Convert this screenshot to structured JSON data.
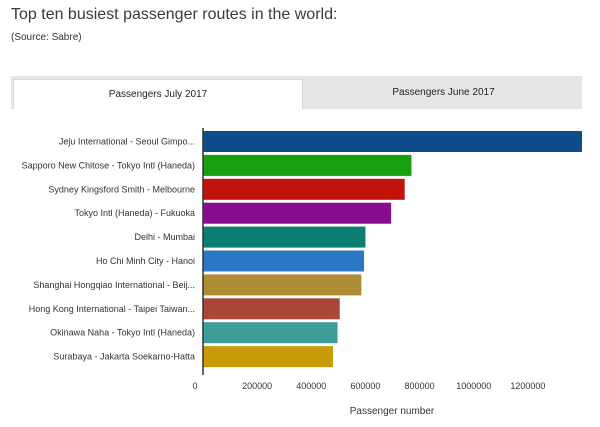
{
  "header": {
    "title": "Top ten busiest passenger routes in the world:",
    "source": "(Source: Sabre)"
  },
  "tabs": [
    {
      "label": "Passengers July 2017",
      "active": true
    },
    {
      "label": "Passengers June 2017",
      "active": false
    }
  ],
  "chart_data": {
    "type": "bar",
    "orientation": "horizontal",
    "categories": [
      "Jeju International - Seoul Gimpo...",
      "Sapporo New Chitose - Tokyo Intl (Haneda)",
      "Sydney Kingsford Smith - Melbourne",
      "Tokyo Intl (Haneda) - Fukuoka",
      "Delhi - Mumbai",
      "Ho Chi Minh City - Hanoi",
      "Shanghai Hongqiao International - Beij...",
      "Hong Kong International - Taipei Taiwan...",
      "Okinawa Naha - Tokyo Intl (Haneda)",
      "Surabaya - Jakarta Soekarno-Hatta"
    ],
    "values": [
      1400000,
      770000,
      745000,
      695000,
      600000,
      595000,
      585000,
      505000,
      497000,
      480000
    ],
    "colors": [
      "#0e4d8a",
      "#16a00f",
      "#c0140c",
      "#860d8d",
      "#0c7d73",
      "#2b77c4",
      "#ad8c34",
      "#a94738",
      "#3e9e9a",
      "#c89b0a"
    ],
    "xlabel": "Passenger number",
    "ylabel": "",
    "xlim": [
      0,
      1400000
    ],
    "xticks": [
      0,
      200000,
      400000,
      600000,
      800000,
      1000000,
      1200000
    ],
    "xtick_labels": [
      "0",
      "200000",
      "400000",
      "600000",
      "800000",
      "1000000",
      "1200000"
    ],
    "grid": false,
    "legend": "none"
  }
}
